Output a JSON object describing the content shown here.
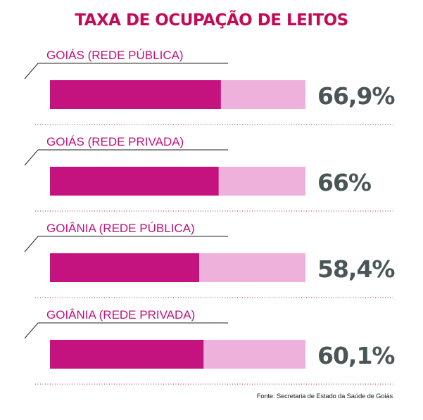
{
  "title": "TAXA DE OCUPAÇÃO DE LEITOS",
  "source": "Fonte: Secretaria de Estado da Saúde de Goiás",
  "colors": {
    "title": "#c30a57",
    "label": "#c0117e",
    "bar_fill": "#c4127e",
    "bar_track": "#edb1dc",
    "value": "#4a5558",
    "divider": "#a3266f",
    "leader": "#222222"
  },
  "chart_data": {
    "type": "bar",
    "orientation": "horizontal",
    "categories": [
      "GOIÁS (REDE PÚBLICA)",
      "GOIÁS (REDE PRIVADA)",
      "GOIÂNIA (REDE PÚBLICA)",
      "GOIÂNIA (REDE PRIVADA)"
    ],
    "values": [
      66.9,
      66,
      58.4,
      60.1
    ],
    "value_labels": [
      "66,9%",
      "66%",
      "58,4%",
      "60,1%"
    ],
    "xlim": [
      0,
      100
    ],
    "unit": "%"
  }
}
